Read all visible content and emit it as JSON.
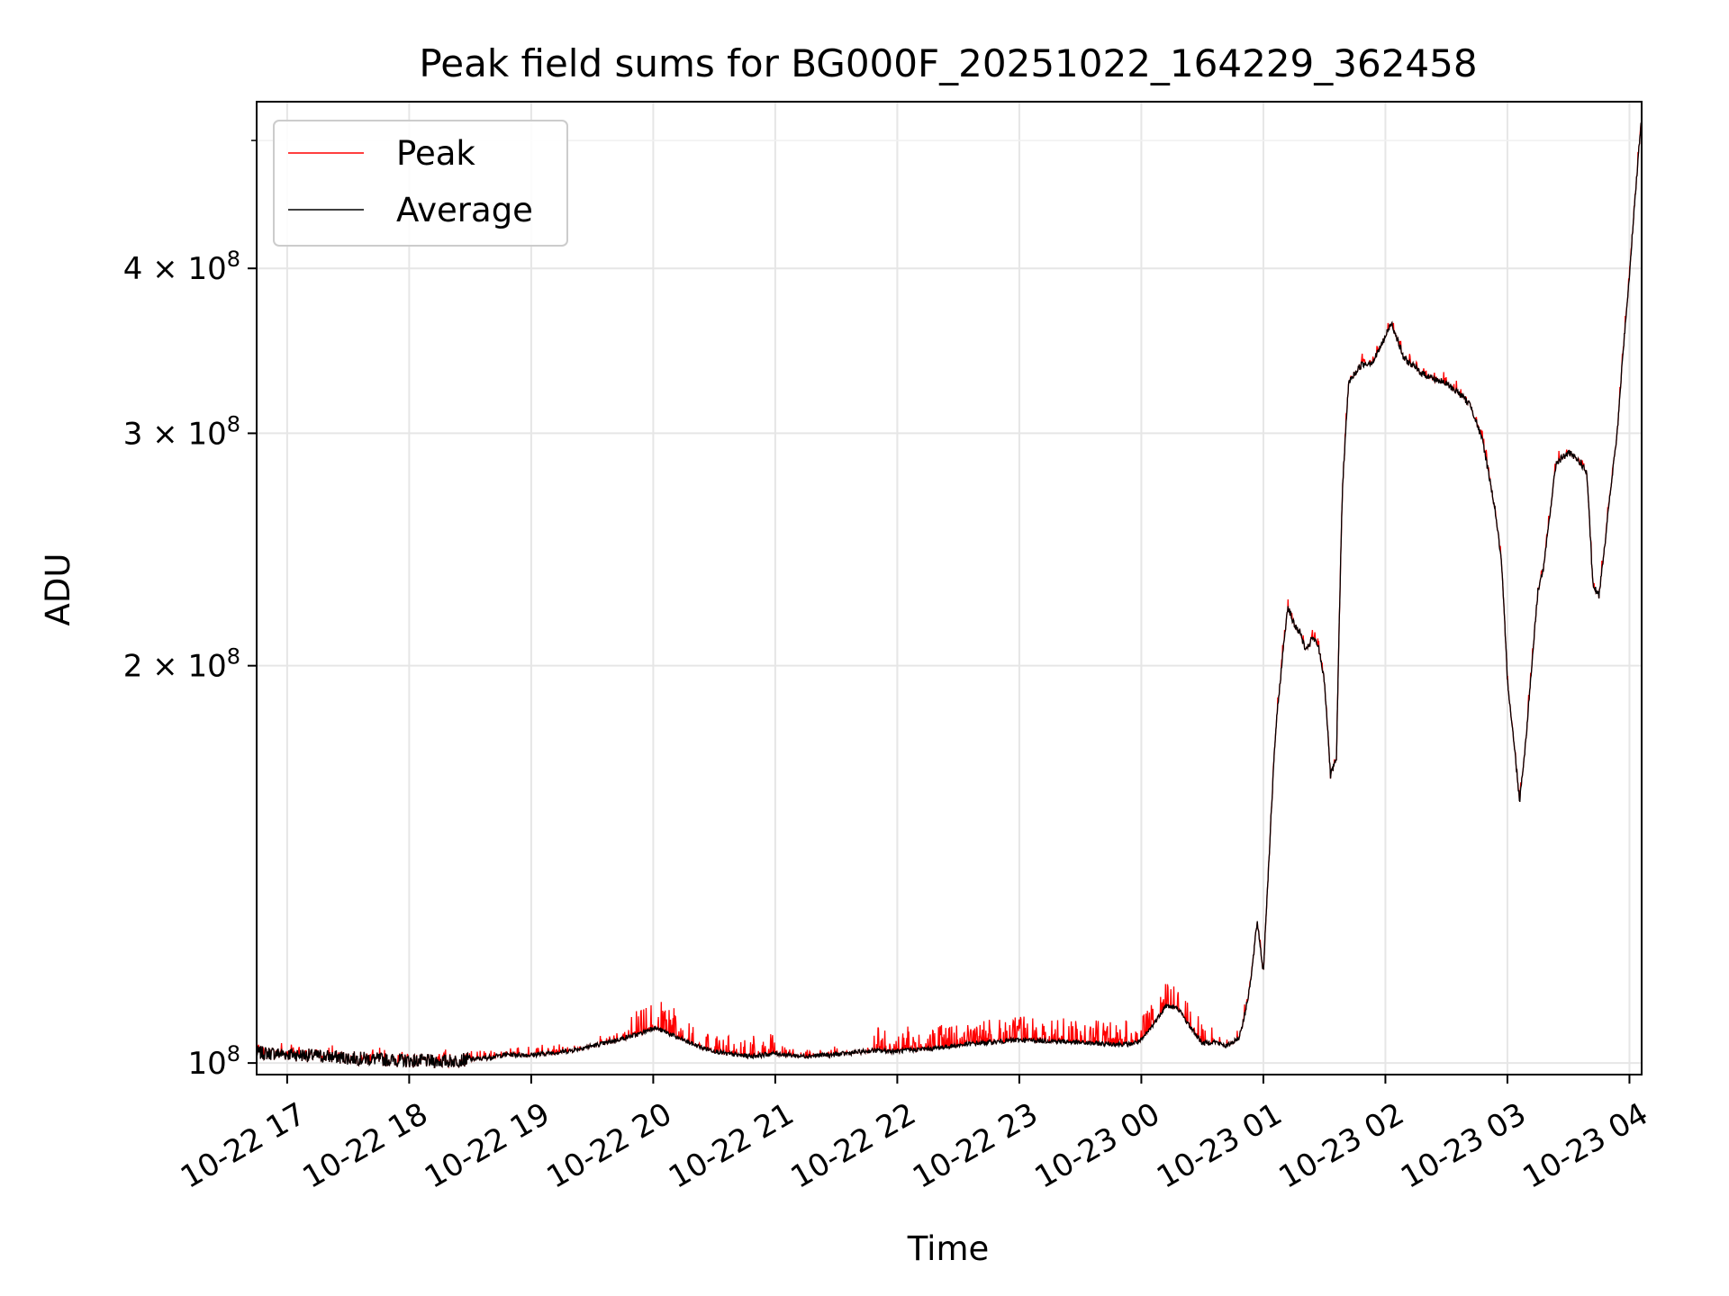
{
  "chart_data": {
    "type": "line",
    "title": "Peak field sums for BG000F_20251022_164229_362458",
    "xlabel": "Time",
    "ylabel": "ADU",
    "yscale": "log",
    "ylim": [
      98000000,
      535000000
    ],
    "xlim_hours": [
      -0.25,
      11.1
    ],
    "grid": true,
    "legend_position": "upper-left",
    "x_ticks": [
      {
        "h": 0,
        "label": "10-22 17"
      },
      {
        "h": 1,
        "label": "10-22 18"
      },
      {
        "h": 2,
        "label": "10-22 19"
      },
      {
        "h": 3,
        "label": "10-22 20"
      },
      {
        "h": 4,
        "label": "10-22 21"
      },
      {
        "h": 5,
        "label": "10-22 22"
      },
      {
        "h": 6,
        "label": "10-22 23"
      },
      {
        "h": 7,
        "label": "10-23 00"
      },
      {
        "h": 8,
        "label": "10-23 01"
      },
      {
        "h": 9,
        "label": "10-23 02"
      },
      {
        "h": 10,
        "label": "10-23 03"
      },
      {
        "h": 11,
        "label": "10-23 04"
      }
    ],
    "y_ticks": [
      {
        "v": 100000000,
        "base": "10",
        "exp": "8"
      },
      {
        "v": 200000000,
        "base": "2 × 10",
        "exp": "8"
      },
      {
        "v": 300000000,
        "base": "3 × 10",
        "exp": "8"
      },
      {
        "v": 400000000,
        "base": "4 × 10",
        "exp": "8"
      }
    ],
    "y_minor_ticks": [
      500000000
    ],
    "series": [
      {
        "name": "Peak",
        "color": "#ff0000"
      },
      {
        "name": "Average",
        "color": "#000000"
      }
    ],
    "average_points": [
      [
        -0.25,
        101.8
      ],
      [
        0,
        101.6
      ],
      [
        0.5,
        100.9
      ],
      [
        1,
        100.4
      ],
      [
        1.3,
        100.3
      ],
      [
        1.6,
        100.8
      ],
      [
        1.8,
        101.5
      ],
      [
        2.0,
        101.4
      ],
      [
        2.3,
        102.1
      ],
      [
        2.6,
        103.5
      ],
      [
        2.9,
        105.3
      ],
      [
        3.0,
        106.4
      ],
      [
        3.1,
        105.6
      ],
      [
        3.2,
        104.5
      ],
      [
        3.4,
        102.7
      ],
      [
        3.6,
        101.6
      ],
      [
        3.8,
        101.2
      ],
      [
        4.0,
        101.7
      ],
      [
        4.2,
        101.2
      ],
      [
        4.5,
        101.5
      ],
      [
        4.8,
        102.2
      ],
      [
        5.0,
        102.1
      ],
      [
        5.3,
        102.6
      ],
      [
        5.6,
        103.4
      ],
      [
        6.0,
        104.1
      ],
      [
        6.3,
        103.9
      ],
      [
        6.6,
        103.5
      ],
      [
        6.9,
        103.3
      ],
      [
        7.0,
        104.0
      ],
      [
        7.1,
        107.0
      ],
      [
        7.2,
        110.5
      ],
      [
        7.3,
        110.0
      ],
      [
        7.4,
        106.5
      ],
      [
        7.5,
        103.5
      ],
      [
        7.6,
        103.8
      ],
      [
        7.7,
        103.0
      ],
      [
        7.8,
        104.5
      ],
      [
        7.85,
        109.0
      ],
      [
        7.9,
        116.0
      ],
      [
        7.95,
        128.0
      ],
      [
        8.0,
        117.0
      ],
      [
        8.05,
        145.0
      ],
      [
        8.1,
        178.0
      ],
      [
        8.15,
        200.0
      ],
      [
        8.2,
        222.0
      ],
      [
        8.25,
        215.0
      ],
      [
        8.3,
        212.0
      ],
      [
        8.35,
        205.0
      ],
      [
        8.4,
        210.0
      ],
      [
        8.45,
        207.0
      ],
      [
        8.5,
        195.0
      ],
      [
        8.55,
        165.0
      ],
      [
        8.6,
        170.0
      ],
      [
        8.65,
        275.0
      ],
      [
        8.7,
        328.0
      ],
      [
        8.8,
        338.0
      ],
      [
        8.9,
        340.0
      ],
      [
        9.0,
        355.0
      ],
      [
        9.05,
        364.0
      ],
      [
        9.15,
        342.0
      ],
      [
        9.3,
        333.0
      ],
      [
        9.5,
        327.0
      ],
      [
        9.6,
        322.0
      ],
      [
        9.7,
        315.0
      ],
      [
        9.8,
        295.0
      ],
      [
        9.9,
        262.0
      ],
      [
        9.95,
        240.0
      ],
      [
        10.0,
        195.0
      ],
      [
        10.05,
        176.0
      ],
      [
        10.1,
        158.0
      ],
      [
        10.15,
        175.0
      ],
      [
        10.2,
        200.0
      ],
      [
        10.25,
        228.0
      ],
      [
        10.3,
        238.0
      ],
      [
        10.4,
        285.0
      ],
      [
        10.5,
        290.0
      ],
      [
        10.6,
        285.0
      ],
      [
        10.65,
        280.0
      ],
      [
        10.7,
        230.0
      ],
      [
        10.75,
        226.0
      ],
      [
        10.8,
        248.0
      ],
      [
        10.9,
        300.0
      ],
      [
        11.0,
        395.0
      ],
      [
        11.1,
        520.0
      ]
    ]
  }
}
